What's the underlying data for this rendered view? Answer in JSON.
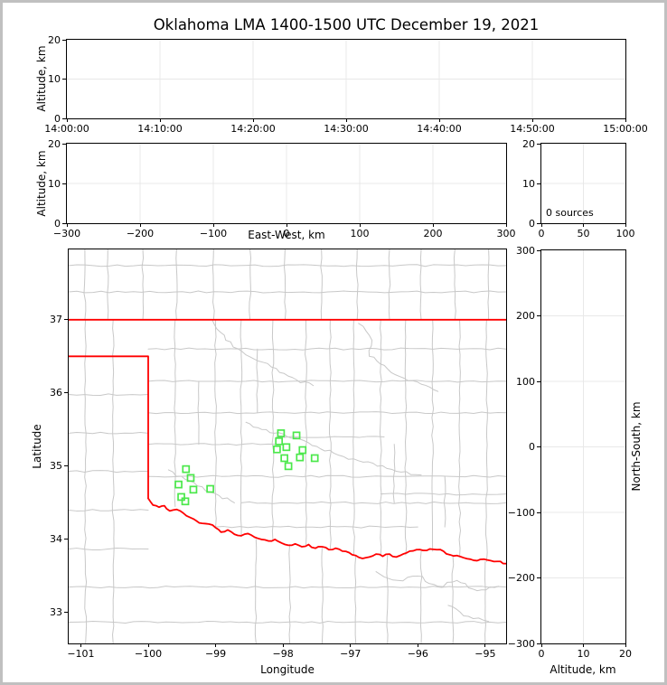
{
  "title": "Oklahoma LMA 1400-1500 UTC December 19, 2021",
  "colors": {
    "station": "#4be84b",
    "state_border": "#ff0000",
    "county": "#c8c8c8",
    "grid": "#e8e8e8",
    "axis": "#000000",
    "frame": "#c0c0c0"
  },
  "chart_data": [
    {
      "id": "time_height",
      "type": "scatter",
      "xlim": [
        0,
        3600
      ],
      "xticks": {
        "values": [
          0,
          600,
          1200,
          1800,
          2400,
          3000,
          3600
        ],
        "labels": [
          "14:00:00",
          "14:10:00",
          "14:20:00",
          "14:30:00",
          "14:40:00",
          "14:50:00",
          "15:00:00"
        ]
      },
      "ylim": [
        0,
        20
      ],
      "yticks": {
        "values": [
          0,
          10,
          20
        ],
        "labels": [
          "0",
          "10",
          "20"
        ]
      },
      "ylabel": "Altitude, km",
      "grid_x": [
        600,
        1200,
        1800,
        2400,
        3000
      ],
      "grid_y": [
        10
      ],
      "points": []
    },
    {
      "id": "ew_height",
      "type": "scatter",
      "xlim": [
        -300,
        300
      ],
      "xticks": {
        "values": [
          -300,
          -200,
          -100,
          0,
          100,
          200,
          300
        ],
        "labels": [
          "−300",
          "−200",
          "−100",
          "0",
          "100",
          "200",
          "300"
        ]
      },
      "ylim": [
        0,
        20
      ],
      "yticks": {
        "values": [
          0,
          10,
          20
        ],
        "labels": [
          "0",
          "10",
          "20"
        ]
      },
      "xlabel": "East-West, km",
      "ylabel": "Altitude, km",
      "grid_x": [
        -200,
        -100,
        0,
        100,
        200
      ],
      "grid_y": [
        10
      ],
      "points": []
    },
    {
      "id": "alt_hist",
      "type": "line",
      "xlim": [
        0,
        100
      ],
      "xticks": {
        "values": [
          0,
          50,
          100
        ],
        "labels": [
          "0",
          "50",
          "100"
        ]
      },
      "ylim": [
        0,
        20
      ],
      "yticks": {
        "values": [
          0,
          10,
          20
        ],
        "labels": [
          "0",
          "10",
          "20"
        ]
      },
      "annotation": "0 sources",
      "grid_x": [
        50
      ],
      "grid_y": [
        10
      ],
      "points": []
    },
    {
      "id": "plan_view",
      "type": "map",
      "xlim": [
        -101.18,
        -94.69
      ],
      "ylim": [
        32.58,
        37.96
      ],
      "xticks": {
        "values": [
          -101,
          -100,
          -99,
          -98,
          -97,
          -96,
          -95
        ],
        "labels": [
          "−101",
          "−100",
          "−99",
          "−98",
          "−97",
          "−96",
          "−95"
        ]
      },
      "yticks": {
        "values": [
          33,
          34,
          35,
          36,
          37
        ],
        "labels": [
          "33",
          "34",
          "35",
          "36",
          "37"
        ]
      },
      "xlabel": "Longitude",
      "ylabel": "Latitude",
      "state_border": {
        "kansas": [
          [
            -101.18,
            37
          ],
          [
            -94.69,
            37
          ]
        ],
        "panhandle": [
          [
            -101.18,
            36.5
          ],
          [
            -100,
            36.5
          ],
          [
            -100,
            34.56
          ]
        ],
        "red_river": [
          [
            -100.0,
            34.56
          ],
          [
            -99.93,
            34.47
          ],
          [
            -99.84,
            34.44
          ],
          [
            -99.76,
            34.46
          ],
          [
            -99.68,
            34.39
          ],
          [
            -99.58,
            34.41
          ],
          [
            -99.48,
            34.36
          ],
          [
            -99.38,
            34.3
          ],
          [
            -99.28,
            34.25
          ],
          [
            -99.2,
            34.22
          ],
          [
            -99.1,
            34.21
          ],
          [
            -99.0,
            34.16
          ],
          [
            -98.92,
            34.1
          ],
          [
            -98.82,
            34.13
          ],
          [
            -98.72,
            34.07
          ],
          [
            -98.62,
            34.05
          ],
          [
            -98.52,
            34.08
          ],
          [
            -98.42,
            34.03
          ],
          [
            -98.32,
            34.0
          ],
          [
            -98.22,
            33.98
          ],
          [
            -98.12,
            34.0
          ],
          [
            -98.02,
            33.95
          ],
          [
            -97.92,
            33.92
          ],
          [
            -97.82,
            33.94
          ],
          [
            -97.72,
            33.9
          ],
          [
            -97.62,
            33.93
          ],
          [
            -97.52,
            33.88
          ],
          [
            -97.42,
            33.9
          ],
          [
            -97.32,
            33.86
          ],
          [
            -97.22,
            33.88
          ],
          [
            -97.12,
            33.84
          ],
          [
            -97.02,
            33.82
          ],
          [
            -96.92,
            33.78
          ],
          [
            -96.82,
            33.74
          ],
          [
            -96.72,
            33.76
          ],
          [
            -96.62,
            33.8
          ],
          [
            -96.52,
            33.77
          ],
          [
            -96.42,
            33.8
          ],
          [
            -96.32,
            33.76
          ],
          [
            -96.22,
            33.8
          ],
          [
            -96.12,
            33.84
          ],
          [
            -96.02,
            33.86
          ],
          [
            -95.92,
            33.85
          ],
          [
            -95.82,
            33.87
          ],
          [
            -95.72,
            33.86
          ],
          [
            -95.62,
            33.84
          ],
          [
            -95.52,
            33.79
          ],
          [
            -95.42,
            33.78
          ],
          [
            -95.32,
            33.75
          ],
          [
            -95.22,
            33.73
          ],
          [
            -95.12,
            33.71
          ],
          [
            -95.02,
            33.73
          ],
          [
            -94.92,
            33.71
          ],
          [
            -94.82,
            33.7
          ],
          [
            -94.69,
            33.67
          ]
        ]
      },
      "counties": {
        "vlines": [
          {
            "lon": -100.94,
            "lat0": 37,
            "lat1": 37.96
          },
          {
            "lon": -100.6,
            "lat0": 37,
            "lat1": 37.96
          },
          {
            "lon": -100.08,
            "lat0": 37,
            "lat1": 37.96
          },
          {
            "lon": -99.58,
            "lat0": 37,
            "lat1": 37.96
          },
          {
            "lon": -99.03,
            "lat0": 37,
            "lat1": 37.96
          },
          {
            "lon": -98.49,
            "lat0": 37,
            "lat1": 37.96
          },
          {
            "lon": -97.97,
            "lat0": 37,
            "lat1": 37.96
          },
          {
            "lon": -97.43,
            "lat0": 37,
            "lat1": 37.96
          },
          {
            "lon": -96.9,
            "lat0": 37,
            "lat1": 37.96
          },
          {
            "lon": -96.42,
            "lat0": 37,
            "lat1": 37.96
          },
          {
            "lon": -95.95,
            "lat0": 37,
            "lat1": 37.96
          },
          {
            "lon": -95.45,
            "lat0": 37,
            "lat1": 37.96
          },
          {
            "lon": -94.95,
            "lat0": 37,
            "lat1": 37.96
          },
          {
            "lon": -100.93,
            "lat0": 32.58,
            "lat1": 37
          },
          {
            "lon": -100.52,
            "lat0": 32.58,
            "lat1": 37
          },
          {
            "lon": -99.6,
            "lat0": 34.45,
            "lat1": 37
          },
          {
            "lon": -99.25,
            "lat0": 35.3,
            "lat1": 36.16
          },
          {
            "lon": -99.0,
            "lat0": 34.17,
            "lat1": 37
          },
          {
            "lon": -98.62,
            "lat0": 34.04,
            "lat1": 37
          },
          {
            "lon": -98.38,
            "lat0": 35.73,
            "lat1": 36.6
          },
          {
            "lon": -98.15,
            "lat0": 33.99,
            "lat1": 37
          },
          {
            "lon": -97.66,
            "lat0": 33.93,
            "lat1": 37
          },
          {
            "lon": -97.3,
            "lat0": 33.88,
            "lat1": 37
          },
          {
            "lon": -96.95,
            "lat0": 33.8,
            "lat1": 37
          },
          {
            "lon": -96.55,
            "lat0": 33.78,
            "lat1": 37
          },
          {
            "lon": -96.35,
            "lat0": 34.5,
            "lat1": 35.3
          },
          {
            "lon": -96.18,
            "lat0": 33.79,
            "lat1": 37
          },
          {
            "lon": -95.78,
            "lat0": 33.84,
            "lat1": 37
          },
          {
            "lon": -95.6,
            "lat0": 34.17,
            "lat1": 34.86
          },
          {
            "lon": -95.38,
            "lat0": 33.76,
            "lat1": 37
          },
          {
            "lon": -94.98,
            "lat0": 33.7,
            "lat1": 37
          },
          {
            "lon": -98.4,
            "lat0": 32.58,
            "lat1": 34.0
          },
          {
            "lon": -97.9,
            "lat0": 32.58,
            "lat1": 33.93
          },
          {
            "lon": -97.42,
            "lat0": 32.58,
            "lat1": 33.88
          },
          {
            "lon": -96.92,
            "lat0": 32.58,
            "lat1": 33.77
          },
          {
            "lon": -96.45,
            "lat0": 32.58,
            "lat1": 33.78
          },
          {
            "lon": -95.95,
            "lat0": 32.58,
            "lat1": 33.84
          },
          {
            "lon": -95.48,
            "lat0": 32.58,
            "lat1": 33.77
          },
          {
            "lon": -95.0,
            "lat0": 32.58,
            "lat1": 33.7
          }
        ],
        "hlines": [
          {
            "lat": 37.38,
            "lon0": -101.18,
            "lon1": -94.69
          },
          {
            "lat": 37.74,
            "lon0": -101.18,
            "lon1": -94.69
          },
          {
            "lat": 35.98,
            "lon0": -101.18,
            "lon1": -100
          },
          {
            "lat": 35.45,
            "lon0": -101.18,
            "lon1": -100
          },
          {
            "lat": 34.93,
            "lon0": -101.18,
            "lon1": -100
          },
          {
            "lat": 34.4,
            "lon0": -101.18,
            "lon1": -100
          },
          {
            "lat": 33.87,
            "lon0": -101.18,
            "lon1": -100
          },
          {
            "lat": 33.35,
            "lon0": -101.18,
            "lon1": -94.69
          },
          {
            "lat": 32.87,
            "lon0": -101.18,
            "lon1": -94.69
          },
          {
            "lat": 36.6,
            "lon0": -100,
            "lon1": -94.69
          },
          {
            "lat": 36.16,
            "lon0": -100,
            "lon1": -94.69
          },
          {
            "lat": 35.73,
            "lon0": -100,
            "lon1": -94.69
          },
          {
            "lat": 35.3,
            "lon0": -100,
            "lon1": -98.1
          },
          {
            "lat": 35.4,
            "lon0": -98.1,
            "lon1": -96.5
          },
          {
            "lat": 34.86,
            "lon0": -100,
            "lon1": -94.69
          },
          {
            "lat": 34.5,
            "lon0": -98.62,
            "lon1": -94.69
          },
          {
            "lat": 34.62,
            "lon0": -96.55,
            "lon1": -94.69
          },
          {
            "lat": 34.17,
            "lon0": -99.0,
            "lon1": -96.0
          }
        ]
      },
      "rivers": [
        [
          [
            -99.05,
            37.0
          ],
          [
            -98.85,
            36.72
          ],
          [
            -98.55,
            36.52
          ],
          [
            -98.3,
            36.42
          ],
          [
            -98.05,
            36.28
          ],
          [
            -97.8,
            36.18
          ],
          [
            -97.55,
            36.1
          ]
        ],
        [
          [
            -96.88,
            36.95
          ],
          [
            -96.68,
            36.72
          ],
          [
            -96.72,
            36.5
          ],
          [
            -96.45,
            36.33
          ],
          [
            -96.2,
            36.2
          ],
          [
            -95.95,
            36.12
          ],
          [
            -95.7,
            36.02
          ]
        ],
        [
          [
            -98.55,
            35.6
          ],
          [
            -98.25,
            35.5
          ],
          [
            -98.0,
            35.44
          ],
          [
            -97.75,
            35.37
          ],
          [
            -97.5,
            35.27
          ],
          [
            -97.25,
            35.18
          ],
          [
            -96.95,
            35.1
          ],
          [
            -96.6,
            35.0
          ],
          [
            -96.25,
            34.92
          ],
          [
            -95.95,
            34.88
          ]
        ],
        [
          [
            -99.7,
            34.95
          ],
          [
            -99.45,
            34.82
          ],
          [
            -99.2,
            34.72
          ],
          [
            -98.95,
            34.6
          ],
          [
            -98.72,
            34.5
          ]
        ],
        [
          [
            -96.62,
            33.56
          ],
          [
            -96.3,
            33.44
          ],
          [
            -96.0,
            33.5
          ],
          [
            -95.7,
            33.36
          ],
          [
            -95.42,
            33.44
          ],
          [
            -95.12,
            33.3
          ],
          [
            -94.8,
            33.36
          ]
        ],
        [
          [
            -95.55,
            33.1
          ],
          [
            -95.25,
            32.95
          ],
          [
            -94.95,
            32.88
          ]
        ]
      ],
      "stations": [
        [
          -99.44,
          34.96
        ],
        [
          -99.37,
          34.84
        ],
        [
          -99.55,
          34.75
        ],
        [
          -99.33,
          34.68
        ],
        [
          -99.08,
          34.69
        ],
        [
          -99.51,
          34.58
        ],
        [
          -99.45,
          34.52
        ],
        [
          -98.03,
          35.45
        ],
        [
          -97.8,
          35.42
        ],
        [
          -98.06,
          35.34
        ],
        [
          -97.95,
          35.26
        ],
        [
          -98.09,
          35.23
        ],
        [
          -97.71,
          35.22
        ],
        [
          -97.98,
          35.11
        ],
        [
          -97.75,
          35.12
        ],
        [
          -97.53,
          35.11
        ],
        [
          -97.92,
          35.0
        ]
      ]
    },
    {
      "id": "ns_height",
      "type": "scatter",
      "xlim": [
        0,
        20
      ],
      "xticks": {
        "values": [
          0,
          10,
          20
        ],
        "labels": [
          "0",
          "10",
          "20"
        ]
      },
      "ylim": [
        -300,
        300
      ],
      "yticks": {
        "values": [
          -300,
          -200,
          -100,
          0,
          100,
          200,
          300
        ],
        "labels": [
          "−300",
          "−200",
          "−100",
          "0",
          "100",
          "200",
          "300"
        ]
      },
      "xlabel": "Altitude, km",
      "ylabel": "North-South, km",
      "grid_x": [
        10
      ],
      "grid_y": [
        -200,
        -100,
        0,
        100,
        200
      ],
      "points": []
    }
  ]
}
